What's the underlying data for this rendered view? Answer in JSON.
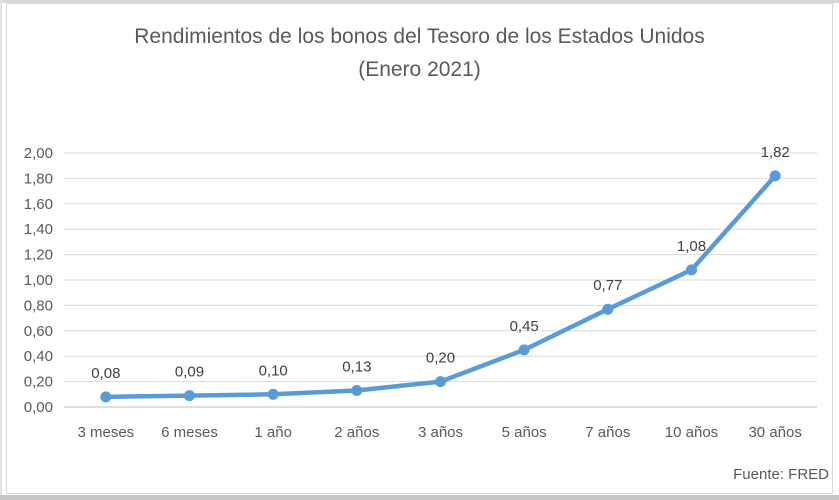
{
  "chart_data": {
    "type": "line",
    "title": "Rendimientos de los bonos del Tesoro de los Estados Unidos",
    "subtitle": "(Enero 2021)",
    "source_note": "Fuente: FRED",
    "categories": [
      "3 meses",
      "6 meses",
      "1 año",
      "2 años",
      "3 años",
      "5 años",
      "7 años",
      "10 años",
      "30 años"
    ],
    "values": [
      0.08,
      0.09,
      0.1,
      0.13,
      0.2,
      0.45,
      0.77,
      1.08,
      1.82
    ],
    "point_labels": [
      "0,08",
      "0,09",
      "0,10",
      "0,13",
      "0,20",
      "0,45",
      "0,77",
      "1,08",
      "1,82"
    ],
    "y_ticks": [
      "0,00",
      "0,20",
      "0,40",
      "0,60",
      "0,80",
      "1,00",
      "1,20",
      "1,40",
      "1,60",
      "1,80",
      "2,00"
    ],
    "ylim": [
      0.0,
      2.0
    ],
    "y_step": 0.2,
    "xlabel": "",
    "ylabel": "",
    "grid": true,
    "legend_position": "none",
    "decimal_separator": ","
  },
  "colors": {
    "line": "#5B9BD5",
    "marker": "#5B9BD5",
    "gridline": "#D9D9D9",
    "axis_line": "#BFBFBF",
    "title_text": "#595959",
    "tick_text": "#595959",
    "data_label_text": "#404040",
    "frame_border": "#D9D9D9"
  }
}
